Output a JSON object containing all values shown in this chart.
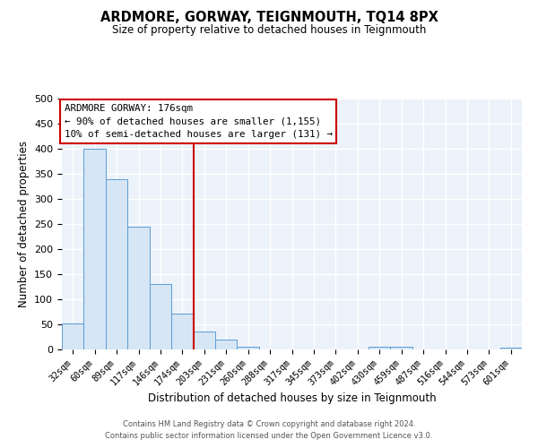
{
  "title": "ARDMORE, GORWAY, TEIGNMOUTH, TQ14 8PX",
  "subtitle": "Size of property relative to detached houses in Teignmouth",
  "xlabel": "Distribution of detached houses by size in Teignmouth",
  "ylabel": "Number of detached properties",
  "categories": [
    "32sqm",
    "60sqm",
    "89sqm",
    "117sqm",
    "146sqm",
    "174sqm",
    "203sqm",
    "231sqm",
    "260sqm",
    "288sqm",
    "317sqm",
    "345sqm",
    "373sqm",
    "402sqm",
    "430sqm",
    "459sqm",
    "487sqm",
    "516sqm",
    "544sqm",
    "573sqm",
    "601sqm"
  ],
  "values": [
    52,
    400,
    340,
    245,
    130,
    72,
    35,
    20,
    6,
    0,
    0,
    0,
    0,
    0,
    5,
    5,
    0,
    0,
    0,
    0,
    3
  ],
  "bar_color_fill": "#d6e6f5",
  "bar_color_edge": "#5b9bd5",
  "vline_x_idx": 5,
  "vline_color": "#cc0000",
  "annotation_title": "ARDMORE GORWAY: 176sqm",
  "annotation_line1": "← 90% of detached houses are smaller (1,155)",
  "annotation_line2": "10% of semi-detached houses are larger (131) →",
  "annotation_box_color": "#cc0000",
  "ylim": [
    0,
    500
  ],
  "yticks": [
    0,
    50,
    100,
    150,
    200,
    250,
    300,
    350,
    400,
    450,
    500
  ],
  "footer_line1": "Contains HM Land Registry data © Crown copyright and database right 2024.",
  "footer_line2": "Contains public sector information licensed under the Open Government Licence v3.0.",
  "bg_color": "#ecf2f9",
  "grid_color": "#ffffff"
}
